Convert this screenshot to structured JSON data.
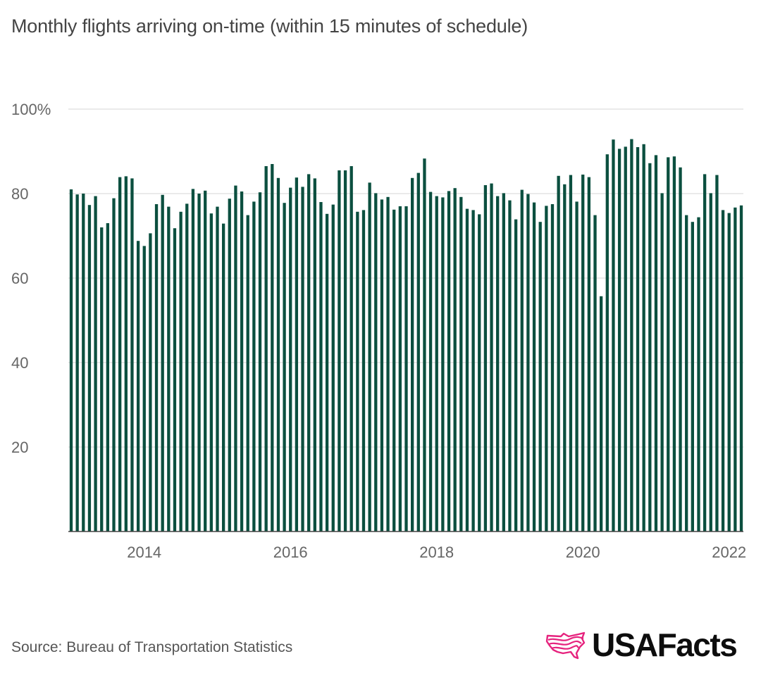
{
  "title": "Monthly flights arriving on-time (within 15 minutes of schedule)",
  "source": "Source: Bureau of Transportation Statistics",
  "brand": "USAFacts",
  "colors": {
    "bar": "#0b4f3f",
    "grid": "#dddddd",
    "logo_flag": "#e6237e"
  },
  "chart_data": {
    "type": "bar",
    "title": "Monthly flights arriving on-time (within 15 minutes of schedule)",
    "xlabel": "",
    "ylabel": "",
    "ylim": [
      0,
      100
    ],
    "y_ticks": [
      {
        "value": 100,
        "label": "100%"
      },
      {
        "value": 80,
        "label": "80"
      },
      {
        "value": 60,
        "label": "60"
      },
      {
        "value": 40,
        "label": "40"
      },
      {
        "value": 20,
        "label": "20"
      }
    ],
    "x_tick_labels": [
      "2014",
      "2016",
      "2018",
      "2020",
      "2022"
    ],
    "start": "2013-01",
    "end": "2022-03",
    "series": [
      {
        "name": "On-time arrivals (%)",
        "values": [
          81.0,
          79.8,
          80.0,
          77.3,
          79.4,
          72.0,
          73.0,
          78.9,
          83.9,
          84.1,
          83.6,
          68.8,
          67.6,
          70.6,
          77.5,
          79.7,
          76.9,
          71.8,
          75.7,
          77.6,
          81.1,
          80.0,
          80.7,
          75.3,
          76.9,
          72.9,
          78.8,
          81.9,
          80.5,
          74.9,
          78.1,
          80.3,
          86.5,
          87.0,
          83.7,
          77.8,
          81.4,
          83.8,
          81.6,
          84.6,
          83.6,
          78.0,
          75.2,
          77.4,
          85.5,
          85.5,
          86.5,
          75.7,
          76.1,
          82.6,
          80.1,
          78.6,
          79.2,
          76.2,
          77.0,
          77.0,
          83.7,
          84.9,
          88.3,
          80.4,
          79.4,
          79.1,
          80.6,
          81.3,
          79.2,
          76.4,
          76.1,
          75.1,
          82.0,
          82.4,
          79.4,
          80.1,
          78.4,
          73.9,
          80.9,
          79.9,
          77.9,
          73.3,
          77.1,
          77.5,
          84.2,
          82.2,
          84.4,
          78.1,
          84.5,
          83.9,
          74.9,
          55.7,
          89.3,
          92.8,
          90.6,
          91.1,
          92.9,
          91.0,
          91.7,
          87.2,
          89.1,
          80.1,
          88.6,
          88.8,
          86.2,
          74.9,
          73.3,
          74.4,
          84.6,
          80.1,
          84.4,
          76.1,
          75.4,
          76.7,
          77.2
        ]
      }
    ]
  }
}
